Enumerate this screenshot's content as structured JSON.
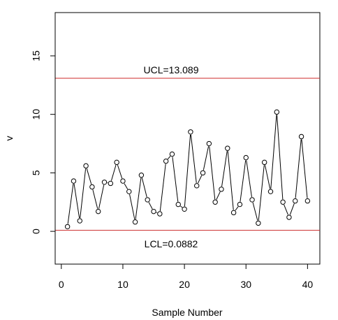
{
  "chart_data": {
    "type": "line",
    "xlabel": "Sample Number",
    "ylabel": "v",
    "xlim": [
      -1,
      42
    ],
    "ylim": [
      -2.8,
      18.7
    ],
    "x_ticks": [
      0,
      10,
      20,
      30,
      40
    ],
    "y_ticks": [
      0,
      5,
      10,
      15
    ],
    "grid": false,
    "markers": "open-circle",
    "line_color": "#000000",
    "control_line_color": "#cc2a2a",
    "ucl": {
      "label": "UCL=13.089",
      "value": 13.089
    },
    "lcl": {
      "label": "LCL=0.0882",
      "value": 0.0882
    },
    "series": [
      {
        "x": [
          1,
          2,
          3,
          4,
          5,
          6,
          7,
          8,
          9,
          10,
          11,
          12,
          13,
          14,
          15,
          16,
          17,
          18,
          19,
          20,
          21,
          22,
          23,
          24,
          25,
          26,
          27,
          28,
          29,
          30,
          31,
          32,
          33,
          34,
          35,
          36,
          37,
          38,
          39,
          40
        ],
        "values": [
          0.4,
          4.3,
          0.9,
          5.6,
          3.8,
          1.7,
          4.2,
          4.1,
          5.9,
          4.3,
          3.4,
          0.8,
          4.8,
          2.7,
          1.7,
          1.5,
          6.0,
          6.6,
          2.3,
          1.9,
          8.5,
          3.9,
          5.0,
          7.5,
          2.5,
          3.6,
          7.1,
          1.6,
          2.3,
          6.3,
          2.7,
          0.7,
          5.9,
          3.4,
          10.2,
          2.5,
          1.2,
          2.6,
          8.1,
          2.6
        ]
      }
    ]
  }
}
